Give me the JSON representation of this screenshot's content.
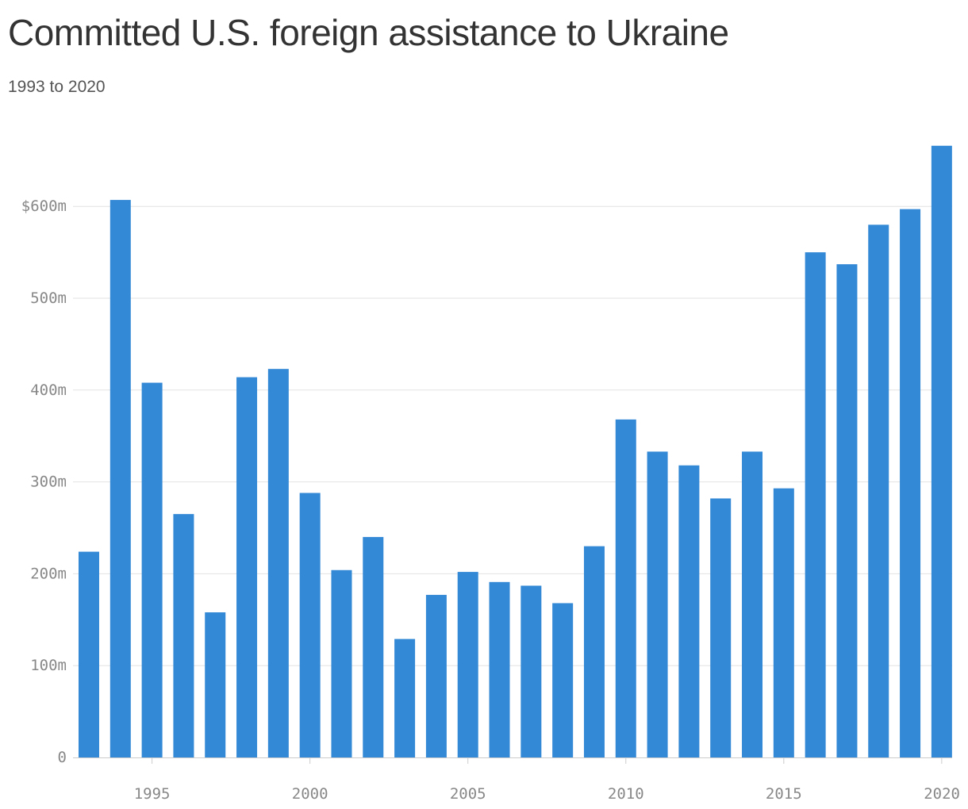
{
  "title": "Committed U.S. foreign assistance to Ukraine",
  "subtitle": "1993 to 2020",
  "colors": {
    "bar": "#3489d6",
    "title": "#333333",
    "subtitle": "#555555",
    "tick_label": "#888888",
    "grid": "#e2e2e2"
  },
  "chart_data": {
    "type": "bar",
    "title": "Committed U.S. foreign assistance to Ukraine",
    "subtitle": "1993 to 2020",
    "xlabel": "",
    "ylabel": "",
    "x": [
      1993,
      1994,
      1995,
      1996,
      1997,
      1998,
      1999,
      2000,
      2001,
      2002,
      2003,
      2004,
      2005,
      2006,
      2007,
      2008,
      2009,
      2010,
      2011,
      2012,
      2013,
      2014,
      2015,
      2016,
      2017,
      2018,
      2019,
      2020
    ],
    "values": [
      224,
      607,
      408,
      265,
      158,
      414,
      423,
      288,
      204,
      240,
      129,
      177,
      202,
      191,
      187,
      168,
      230,
      368,
      333,
      318,
      282,
      333,
      293,
      550,
      537,
      580,
      597,
      666
    ],
    "unit": "millions of dollars",
    "ylim": [
      0,
      666
    ],
    "yticks": [
      0,
      100,
      200,
      300,
      400,
      500,
      600
    ],
    "ytick_labels": [
      "0",
      "100m",
      "200m",
      "300m",
      "400m",
      "500m",
      "$600m"
    ],
    "xticks": [
      1995,
      2000,
      2005,
      2010,
      2015,
      2020
    ],
    "xtick_labels": [
      "1995",
      "2000",
      "2005",
      "2010",
      "2015",
      "2020"
    ],
    "grid": true,
    "legend": "none"
  }
}
